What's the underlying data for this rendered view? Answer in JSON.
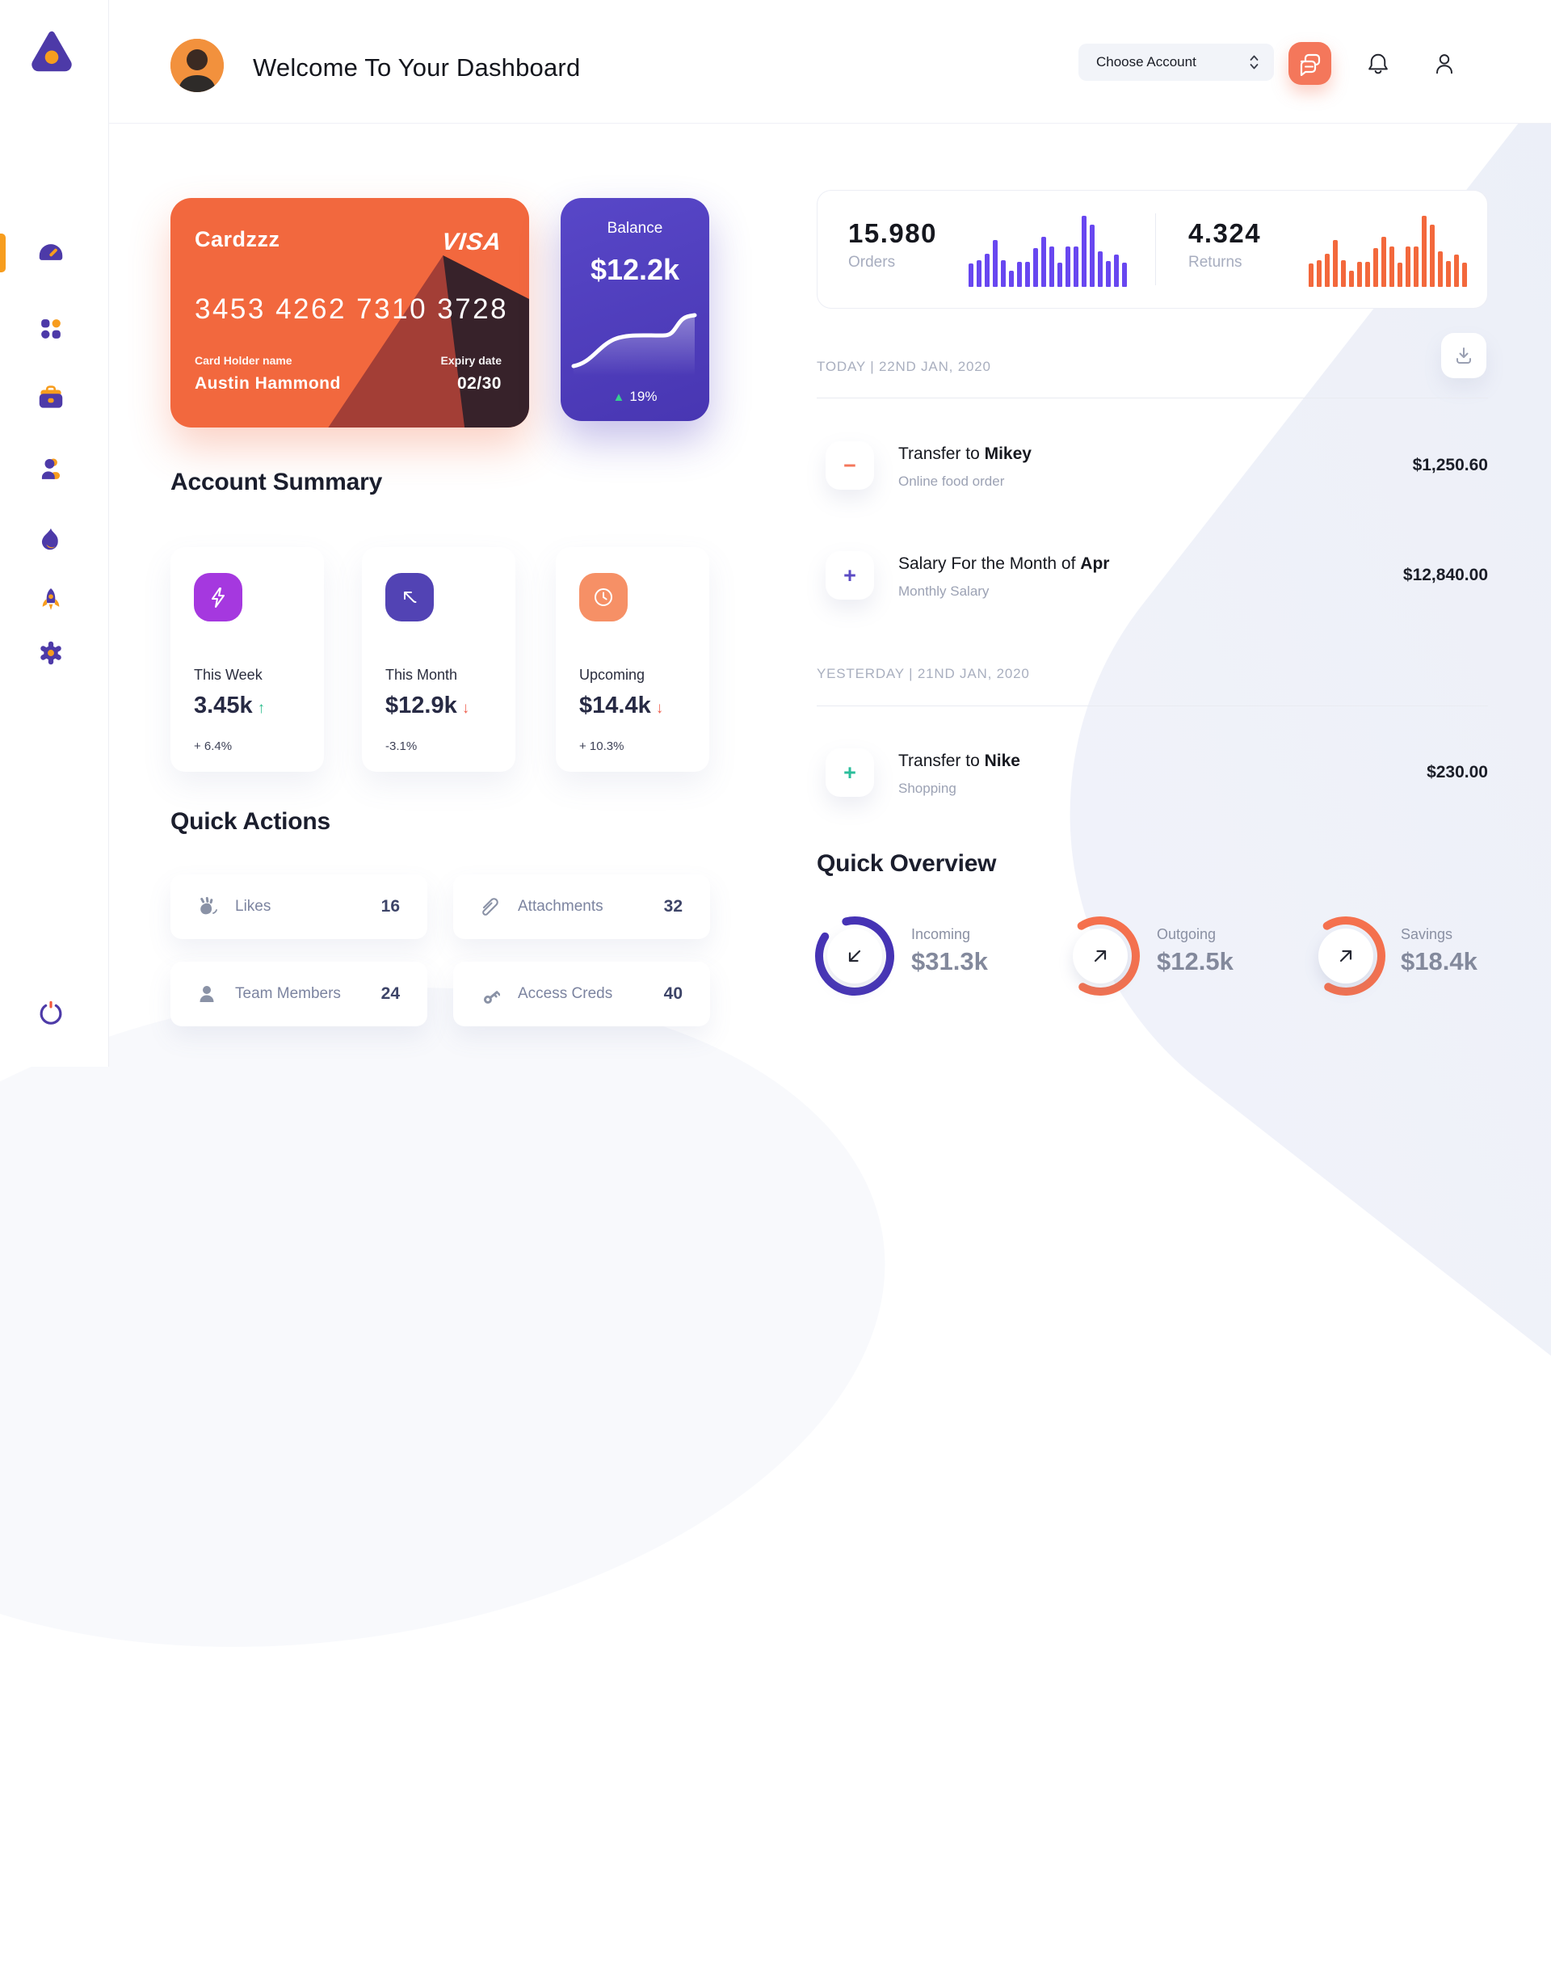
{
  "sidebar": {
    "items": [
      {
        "icon": "dashboard",
        "active": true
      },
      {
        "icon": "apps-grid",
        "active": false
      },
      {
        "icon": "briefcase",
        "active": false
      },
      {
        "icon": "team",
        "active": false
      },
      {
        "icon": "flame-activity",
        "active": false
      },
      {
        "icon": "rocket",
        "active": false
      },
      {
        "icon": "settings-gear",
        "active": false
      }
    ],
    "logout_icon": "power"
  },
  "header": {
    "title": "Welcome To Your Dashboard",
    "account_selector": {
      "label": "Choose Account"
    },
    "icons": [
      "chat",
      "notifications",
      "profile"
    ]
  },
  "credit_card": {
    "nickname": "Cardzzz",
    "brand": "VISA",
    "number": "3453 4262 7310 3728",
    "holder_label": "Card Holder name",
    "holder": "Austin Hammond",
    "expiry_label": "Expiry date",
    "expiry": "02/30",
    "bg_color": "#F2683E",
    "triangle_colors": [
      "#A33E36",
      "#37222A"
    ]
  },
  "balance_card": {
    "title": "Balance",
    "value": "$12.2k",
    "trend_arrow": "▲",
    "change": "19%",
    "bg_color": "#4E3DBE"
  },
  "account_summary": {
    "heading": "Account Summary",
    "items": [
      {
        "label": "This Week",
        "value": "3.45k",
        "arrow": "↑",
        "arrow_color": "#2FBE8F",
        "change": "+ 6.4%",
        "icon": "lightning",
        "icon_bg": "#A538DF"
      },
      {
        "label": "This Month",
        "value": "$12.9k",
        "arrow": "↓",
        "arrow_color": "#EE6352",
        "change": "-3.1%",
        "icon": "trend-arrow",
        "icon_bg": "#5243B4"
      },
      {
        "label": "Upcoming",
        "value": "$14.4k",
        "arrow": "↓",
        "arrow_color": "#EE6352",
        "change": "+ 10.3%",
        "icon": "clock",
        "icon_bg": "#F69066"
      }
    ]
  },
  "quick_actions": {
    "heading": "Quick Actions",
    "items": [
      {
        "label": "Likes",
        "count": "16",
        "icon": "clap-hands"
      },
      {
        "label": "Attachments",
        "count": "32",
        "icon": "paperclip"
      },
      {
        "label": "Team Members",
        "count": "24",
        "icon": "person"
      },
      {
        "label": "Access Creds",
        "count": "40",
        "icon": "key"
      }
    ]
  },
  "stats": {
    "orders": {
      "value": "15.980",
      "label": "Orders",
      "color": "#6847F0",
      "bars": [
        0.33,
        0.38,
        0.47,
        0.66,
        0.38,
        0.23,
        0.35,
        0.35,
        0.55,
        0.7,
        0.57,
        0.34,
        0.57,
        0.57,
        1.0,
        0.87,
        0.5,
        0.36,
        0.45,
        0.34
      ]
    },
    "returns": {
      "value": "4.324",
      "label": "Returns",
      "color": "#F3683C",
      "bars": [
        0.33,
        0.38,
        0.47,
        0.66,
        0.38,
        0.23,
        0.35,
        0.35,
        0.55,
        0.7,
        0.57,
        0.34,
        0.57,
        0.57,
        1.0,
        0.87,
        0.5,
        0.36,
        0.45,
        0.34
      ]
    }
  },
  "transactions": {
    "groups": [
      {
        "date_label": "TODAY | 22ND JAN, 2020",
        "items": [
          {
            "sign": "−",
            "sign_color": "#F4775B",
            "title_prefix": "Transfer to ",
            "title_bold": "Mikey",
            "subtitle": "Online food order",
            "amount": "$1,250.60"
          },
          {
            "sign": "+",
            "sign_color": "#5B4BC4",
            "title_prefix": "Salary For the Month of ",
            "title_bold": "Apr",
            "subtitle": "Monthly Salary",
            "amount": "$12,840.00"
          }
        ]
      },
      {
        "date_label": "YESTERDAY | 21ND JAN, 2020",
        "items": [
          {
            "sign": "+",
            "sign_color": "#2BBE9B",
            "title_prefix": "Transfer to ",
            "title_bold": "Nike",
            "subtitle": "Shopping",
            "amount": "$230.00"
          }
        ]
      }
    ]
  },
  "quick_overview": {
    "heading": "Quick Overview",
    "items": [
      {
        "label": "Incoming",
        "value": "$31.3k",
        "percent": 88,
        "ring_color": "#4633B5",
        "arrow": "down-left"
      },
      {
        "label": "Outgoing",
        "value": "$12.5k",
        "percent": 67,
        "ring_color": "#F5714E",
        "arrow": "up-right"
      },
      {
        "label": "Savings",
        "value": "$18.4k",
        "percent": 67,
        "ring_color": "#F5714E",
        "arrow": "up-right"
      }
    ]
  },
  "chart_data": [
    {
      "type": "bar",
      "title": "Orders mini chart",
      "values": [
        0.33,
        0.38,
        0.47,
        0.66,
        0.38,
        0.23,
        0.35,
        0.35,
        0.55,
        0.7,
        0.57,
        0.34,
        0.57,
        0.57,
        1.0,
        0.87,
        0.5,
        0.36,
        0.45,
        0.34
      ]
    },
    {
      "type": "bar",
      "title": "Returns mini chart",
      "values": [
        0.33,
        0.38,
        0.47,
        0.66,
        0.38,
        0.23,
        0.35,
        0.35,
        0.55,
        0.7,
        0.57,
        0.34,
        0.57,
        0.57,
        1.0,
        0.87,
        0.5,
        0.36,
        0.45,
        0.34
      ]
    },
    {
      "type": "line",
      "title": "Balance trend",
      "values": [
        10,
        14,
        30,
        48,
        55,
        55,
        55,
        57,
        68,
        85,
        83
      ]
    },
    {
      "type": "pie",
      "title": "Incoming",
      "values": [
        88
      ]
    },
    {
      "type": "pie",
      "title": "Outgoing",
      "values": [
        67
      ]
    },
    {
      "type": "pie",
      "title": "Savings",
      "values": [
        67
      ]
    }
  ]
}
